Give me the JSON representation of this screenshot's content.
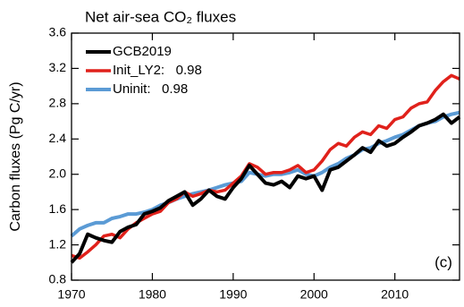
{
  "chart_data": {
    "type": "line",
    "title": "Net air-sea CO₂ fluxes",
    "ylabel": "Carbon fluxes (Pg C/yr)",
    "annotation": "(c)",
    "x": [
      1970,
      1971,
      1972,
      1973,
      1974,
      1975,
      1976,
      1977,
      1978,
      1979,
      1980,
      1981,
      1982,
      1983,
      1984,
      1985,
      1986,
      1987,
      1988,
      1989,
      1990,
      1991,
      1992,
      1993,
      1994,
      1995,
      1996,
      1997,
      1998,
      1999,
      2000,
      2001,
      2002,
      2003,
      2004,
      2005,
      2006,
      2007,
      2008,
      2009,
      2010,
      2011,
      2012,
      2013,
      2014,
      2015,
      2016,
      2017,
      2018
    ],
    "series": [
      {
        "name": "Uninit:   0.98",
        "color": "#5b9bd5",
        "width": 4,
        "values": [
          1.3,
          1.38,
          1.42,
          1.45,
          1.45,
          1.5,
          1.52,
          1.55,
          1.55,
          1.57,
          1.6,
          1.65,
          1.68,
          1.72,
          1.75,
          1.78,
          1.8,
          1.82,
          1.85,
          1.88,
          1.9,
          1.92,
          2.02,
          2.0,
          1.98,
          2.0,
          2.0,
          2.02,
          2.05,
          2.0,
          1.98,
          2.02,
          2.08,
          2.12,
          2.18,
          2.22,
          2.28,
          2.3,
          2.35,
          2.38,
          2.42,
          2.45,
          2.5,
          2.55,
          2.58,
          2.6,
          2.65,
          2.68,
          2.7
        ]
      },
      {
        "name": "Init_LY2:   0.98",
        "color": "#e0211b",
        "width": 3.5,
        "values": [
          1.08,
          1.05,
          1.12,
          1.2,
          1.3,
          1.32,
          1.28,
          1.38,
          1.45,
          1.5,
          1.55,
          1.58,
          1.68,
          1.72,
          1.8,
          1.75,
          1.78,
          1.82,
          1.8,
          1.82,
          1.9,
          1.98,
          2.12,
          2.08,
          2.0,
          2.02,
          2.02,
          2.05,
          2.1,
          2.02,
          2.05,
          2.15,
          2.28,
          2.35,
          2.32,
          2.42,
          2.48,
          2.45,
          2.55,
          2.52,
          2.62,
          2.65,
          2.75,
          2.8,
          2.82,
          2.95,
          3.05,
          3.12,
          3.08
        ]
      },
      {
        "name": "GCB2019",
        "color": "#000000",
        "width": 4,
        "values": [
          1.0,
          1.1,
          1.32,
          1.28,
          1.25,
          1.23,
          1.35,
          1.4,
          1.43,
          1.55,
          1.58,
          1.62,
          1.7,
          1.75,
          1.8,
          1.65,
          1.72,
          1.82,
          1.75,
          1.72,
          1.85,
          1.95,
          2.1,
          2.0,
          1.9,
          1.88,
          1.92,
          1.85,
          1.98,
          1.95,
          1.98,
          1.82,
          2.05,
          2.08,
          2.15,
          2.22,
          2.3,
          2.25,
          2.38,
          2.32,
          2.35,
          2.42,
          2.48,
          2.55,
          2.58,
          2.62,
          2.68,
          2.58,
          2.65
        ]
      }
    ],
    "legend_order": [
      2,
      1,
      0
    ],
    "xlim": [
      1970,
      2018
    ],
    "xticks": [
      1970,
      1980,
      1990,
      2000,
      2010
    ],
    "ylim": [
      0.8,
      3.6
    ],
    "yticks": [
      0.8,
      1.2,
      1.6,
      {
        "value": 2.0,
        "label": "2.0"
      },
      2.4,
      2.8,
      3.2,
      3.6
    ],
    "legend": "upper left",
    "grid": false
  }
}
